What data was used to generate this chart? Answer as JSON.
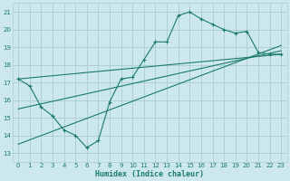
{
  "xlabel": "Humidex (Indice chaleur)",
  "bg_color": "#cce8ec",
  "grid_color": "#aacdd2",
  "line_color": "#1a7a6e",
  "xlim": [
    -0.5,
    23.5
  ],
  "ylim": [
    12.5,
    21.5
  ],
  "xticks": [
    0,
    1,
    2,
    3,
    4,
    5,
    6,
    7,
    8,
    9,
    10,
    11,
    12,
    13,
    14,
    15,
    16,
    17,
    18,
    19,
    20,
    21,
    22,
    23
  ],
  "yticks": [
    13,
    14,
    15,
    16,
    17,
    18,
    19,
    20,
    21
  ],
  "main_x": [
    0,
    1,
    2,
    3,
    4,
    5,
    6,
    7,
    8,
    9,
    10,
    11,
    12,
    13,
    14,
    15,
    16,
    17,
    18,
    19,
    20,
    21,
    22,
    23
  ],
  "main_y": [
    17.2,
    16.8,
    15.6,
    15.1,
    14.3,
    14.0,
    13.3,
    13.7,
    15.9,
    17.2,
    17.3,
    18.3,
    19.3,
    19.3,
    20.8,
    21.0,
    20.6,
    20.3,
    20.0,
    19.8,
    19.9,
    18.7,
    18.6,
    18.6
  ],
  "trend1_x": [
    0,
    23
  ],
  "trend1_y": [
    17.2,
    18.6
  ],
  "trend2_x": [
    0,
    23
  ],
  "trend2_y": [
    13.5,
    19.1
  ],
  "trend3_x": [
    0,
    23
  ],
  "trend3_y": [
    15.5,
    18.8
  ]
}
